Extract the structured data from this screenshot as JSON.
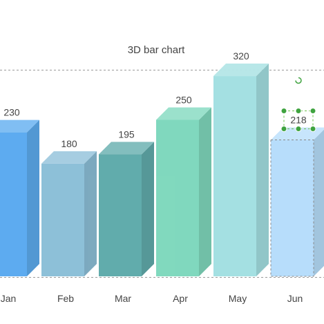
{
  "chart_data": {
    "type": "bar",
    "title": "3D bar chart",
    "categories": [
      "Jan",
      "Feb",
      "Mar",
      "Apr",
      "May",
      "Jun"
    ],
    "values": [
      230,
      180,
      195,
      250,
      320,
      218
    ],
    "data_labels": [
      "230",
      "180",
      "195",
      "250",
      "320",
      "218"
    ],
    "colors": [
      "#5aaaf0",
      "#8bbfd8",
      "#5eabab",
      "#7ed8bd",
      "#a3e0e2",
      "#b4dcfb"
    ],
    "selected_index": 5,
    "ylim": [
      0,
      330
    ],
    "grid": false,
    "legend": "none"
  }
}
